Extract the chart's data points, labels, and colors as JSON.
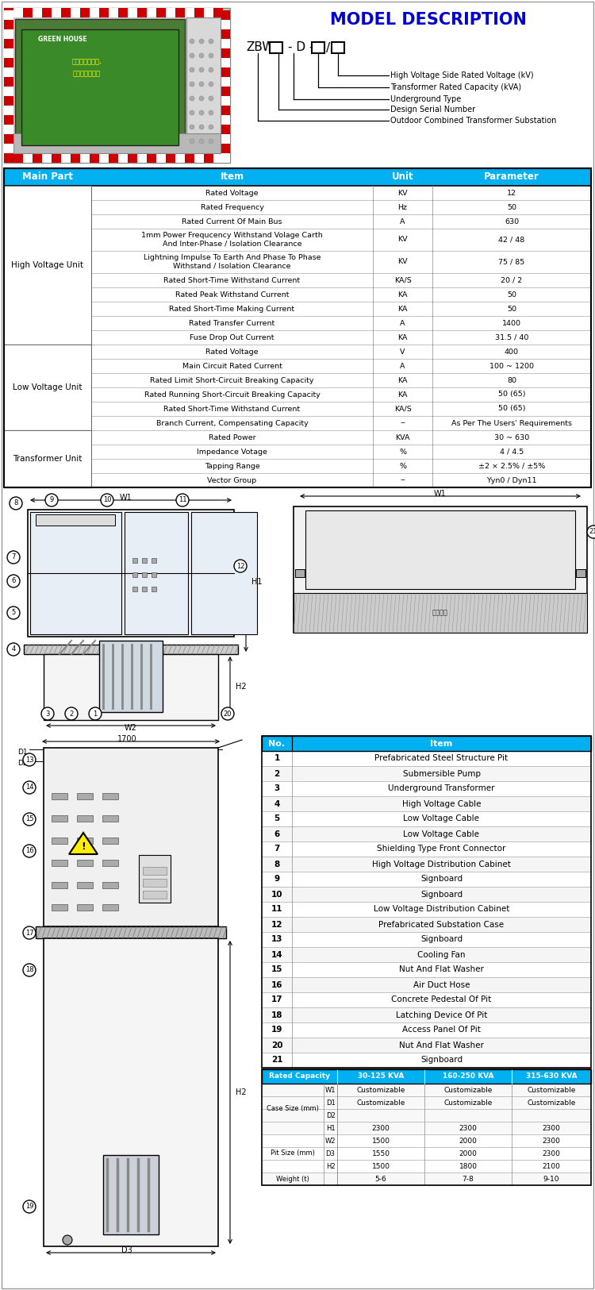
{
  "title": "MODEL DESCRIPTION",
  "model_labels": [
    "High Voltage Side Rated Voltage (kV)",
    "Transformer Rated Capacity (kVA)",
    "Underground Type",
    "Design Serial Number",
    "Outdoor Combined Transformer Substation"
  ],
  "table_header": [
    "Main Part",
    "Item",
    "Unit",
    "Parameter"
  ],
  "table_header_color": "#00b0f0",
  "table_data": [
    [
      "High Voltage Unit",
      "Rated Voltage",
      "KV",
      "12"
    ],
    [
      "High Voltage Unit",
      "Rated Frequency",
      "Hz",
      "50"
    ],
    [
      "High Voltage Unit",
      "Rated Current Of Main Bus",
      "A",
      "630"
    ],
    [
      "High Voltage Unit",
      "1mm Power Frequcency Withstand Volage Carth\nAnd Inter-Phase / Isolation Clearance",
      "KV",
      "42 / 48"
    ],
    [
      "High Voltage Unit",
      "Lightning Impulse To Earth And Phase To Phase\nWithstand / Isolation Clearance",
      "KV",
      "75 / 85"
    ],
    [
      "High Voltage Unit",
      "Rated Short-Time Withstand Current",
      "KA/S",
      "20 / 2"
    ],
    [
      "High Voltage Unit",
      "Rated Peak Withstand Current",
      "KA",
      "50"
    ],
    [
      "High Voltage Unit",
      "Rated Short-Time Making Current",
      "KA",
      "50"
    ],
    [
      "High Voltage Unit",
      "Rated Transfer Current",
      "A",
      "1400"
    ],
    [
      "High Voltage Unit",
      "Fuse Drop Out Current",
      "KA",
      "31.5 / 40"
    ],
    [
      "Low Voltage Unit",
      "Rated Voltage",
      "V",
      "400"
    ],
    [
      "Low Voltage Unit",
      "Main Circuit Rated Current",
      "A",
      "100 ~ 1200"
    ],
    [
      "Low Voltage Unit",
      "Rated Limit Short-Circuit Breaking Capacity",
      "KA",
      "80"
    ],
    [
      "Low Voltage Unit",
      "Rated Running Short-Circuit Breaking Capacity",
      "KA",
      "50 (65)"
    ],
    [
      "Low Voltage Unit",
      "Rated Short-Time Withstand Current",
      "KA/S",
      "50 (65)"
    ],
    [
      "Low Voltage Unit",
      "Branch Current, Compensating Capacity",
      "--",
      "As Per The Users' Requirements"
    ],
    [
      "Transformer Unit",
      "Rated Power",
      "KVA",
      "30 ~ 630"
    ],
    [
      "Transformer Unit",
      "Impedance Votage",
      "%",
      "4 / 4.5"
    ],
    [
      "Transformer Unit",
      "Tapping Range",
      "%",
      "±2 × 2.5% / ±5%"
    ],
    [
      "Transformer Unit",
      "Vector Group",
      "--",
      "Yyn0 / Dyn11"
    ]
  ],
  "items_list": [
    [
      1,
      "Prefabricated Steel Structure Pit"
    ],
    [
      2,
      "Submersible Pump"
    ],
    [
      3,
      "Underground Transformer"
    ],
    [
      4,
      "High Voltage Cable"
    ],
    [
      5,
      "Low Voltage Cable"
    ],
    [
      6,
      "Low Voltage Cable"
    ],
    [
      7,
      "Shielding Type Front Connector"
    ],
    [
      8,
      "High Voltage Distribution Cabinet"
    ],
    [
      9,
      "Signboard"
    ],
    [
      10,
      "Signboard"
    ],
    [
      11,
      "Low Voltage Distribution Cabinet"
    ],
    [
      12,
      "Prefabricated Substation Case"
    ],
    [
      13,
      "Signboard"
    ],
    [
      14,
      "Cooling Fan"
    ],
    [
      15,
      "Nut And Flat Washer"
    ],
    [
      16,
      "Air Duct Hose"
    ],
    [
      17,
      "Concrete Pedestal Of Pit"
    ],
    [
      18,
      "Latching Device Of Pit"
    ],
    [
      19,
      "Access Panel Of Pit"
    ],
    [
      20,
      "Nut And Flat Washer"
    ],
    [
      21,
      "Signboard"
    ]
  ],
  "size_table_header": [
    "Rated Capacity",
    "30-125 KVA",
    "160-250 KVA",
    "315-630 KVA"
  ],
  "size_rows": [
    [
      "Case Size (mm)",
      "W1",
      "Customizable",
      "Customizable",
      "Customizable"
    ],
    [
      "Case Size (mm)",
      "D1",
      "Customizable",
      "Customizable",
      "Customizable"
    ],
    [
      "Case Size (mm)",
      "D2",
      "",
      "",
      ""
    ],
    [
      "Case Size (mm)",
      "H1",
      "2300",
      "2300",
      "2300"
    ],
    [
      "Pit Size (mm)",
      "W2",
      "1500",
      "2000",
      "2300"
    ],
    [
      "Pit Size (mm)",
      "D3",
      "1550",
      "2000",
      "2300"
    ],
    [
      "Pit Size (mm)",
      "H2",
      "1500",
      "1800",
      "2100"
    ],
    [
      "Weight (t)",
      "",
      "5-6",
      "7-8",
      "9-10"
    ]
  ],
  "bg_color": "#ffffff",
  "header_bg": "#00b0f0"
}
